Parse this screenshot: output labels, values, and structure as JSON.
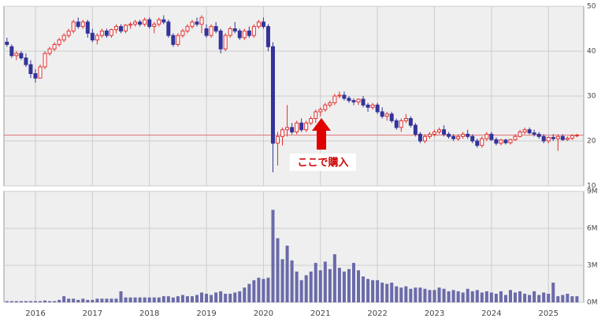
{
  "chart_data": {
    "type": "candlestick",
    "categories": [
      null,
      null,
      null,
      null,
      null,
      null,
      "2016",
      null,
      null,
      null,
      null,
      null,
      null,
      null,
      null,
      null,
      null,
      null,
      "2017",
      null,
      null,
      null,
      null,
      null,
      null,
      null,
      null,
      null,
      null,
      null,
      "2018",
      null,
      null,
      null,
      null,
      null,
      null,
      null,
      null,
      null,
      null,
      null,
      "2019",
      null,
      null,
      null,
      null,
      null,
      null,
      null,
      null,
      null,
      null,
      null,
      "2020",
      null,
      null,
      null,
      null,
      null,
      null,
      null,
      null,
      null,
      null,
      null,
      "2021",
      null,
      null,
      null,
      null,
      null,
      null,
      null,
      null,
      null,
      null,
      null,
      "2022",
      null,
      null,
      null,
      null,
      null,
      null,
      null,
      null,
      null,
      null,
      null,
      "2023",
      null,
      null,
      null,
      null,
      null,
      null,
      null,
      null,
      null,
      null,
      null,
      "2024",
      null,
      null,
      null,
      null,
      null,
      null,
      null,
      null,
      null,
      null,
      null,
      "2025",
      null,
      null,
      null,
      null,
      null,
      null
    ],
    "ohlc": [
      [
        42,
        43,
        41,
        41.5
      ],
      [
        41,
        41.5,
        38.5,
        39
      ],
      [
        39,
        40,
        38,
        39.5
      ],
      [
        39.5,
        40,
        38,
        38.5
      ],
      [
        38.5,
        39.5,
        36.5,
        37
      ],
      [
        37,
        38,
        34,
        35
      ],
      [
        35,
        36,
        33,
        34
      ],
      [
        34,
        37,
        34,
        36.5
      ],
      [
        36.5,
        40,
        36,
        39.5
      ],
      [
        39.5,
        41,
        39,
        40.5
      ],
      [
        40.5,
        42,
        40,
        41.5
      ],
      [
        41.5,
        43,
        41,
        42.5
      ],
      [
        42.5,
        44,
        42,
        43.5
      ],
      [
        43.5,
        45,
        43,
        44.5
      ],
      [
        44.5,
        47,
        44,
        46.5
      ],
      [
        46.5,
        47.5,
        45,
        45.5
      ],
      [
        45.5,
        47,
        45,
        46.5
      ],
      [
        46.5,
        47,
        43,
        44
      ],
      [
        44,
        45,
        42,
        42.5
      ],
      [
        42.5,
        44,
        41.5,
        43.5
      ],
      [
        43.5,
        45,
        43,
        44.5
      ],
      [
        44.5,
        45,
        43,
        43.5
      ],
      [
        43.5,
        45,
        43,
        44.8
      ],
      [
        44.8,
        46,
        44,
        45.5
      ],
      [
        45.5,
        46,
        44,
        44.5
      ],
      [
        44.5,
        46,
        44,
        45.8
      ],
      [
        45.8,
        46.5,
        45,
        46
      ],
      [
        46,
        47,
        45.5,
        46.5
      ],
      [
        46.5,
        47,
        45.5,
        46
      ],
      [
        46,
        47.5,
        45.5,
        47
      ],
      [
        47,
        47.5,
        45,
        45.5
      ],
      [
        45.5,
        46.5,
        44,
        46
      ],
      [
        46,
        47.5,
        45.5,
        47
      ],
      [
        47,
        48,
        46,
        46.5
      ],
      [
        46.5,
        47,
        43,
        43.5
      ],
      [
        43.5,
        44,
        41,
        41.5
      ],
      [
        41.5,
        44,
        41,
        43.5
      ],
      [
        43.5,
        45,
        43,
        44.5
      ],
      [
        44.5,
        46,
        44,
        45.5
      ],
      [
        45.5,
        47,
        45,
        46.5
      ],
      [
        46.5,
        47.5,
        45.5,
        46
      ],
      [
        46,
        48,
        44,
        47.5
      ],
      [
        45,
        46,
        43,
        43.5
      ],
      [
        43.5,
        46,
        43,
        45.5
      ],
      [
        45.5,
        46.5,
        44,
        44.5
      ],
      [
        44.5,
        45,
        39.5,
        40.5
      ],
      [
        40.5,
        44,
        40,
        43.5
      ],
      [
        43.5,
        45.5,
        43,
        45
      ],
      [
        45,
        46.5,
        44,
        44.5
      ],
      [
        44.5,
        45,
        42.5,
        43
      ],
      [
        43,
        45,
        42.5,
        44.5
      ],
      [
        44.5,
        45.5,
        43,
        43.5
      ],
      [
        43.5,
        46,
        43,
        45.5
      ],
      [
        45.5,
        47,
        45,
        46.5
      ],
      [
        46.5,
        47.5,
        45,
        45.5
      ],
      [
        45.5,
        46,
        40,
        41
      ],
      [
        41,
        42,
        13,
        19.5
      ],
      [
        19.5,
        22,
        14.5,
        21
      ],
      [
        21,
        23,
        19,
        22.5
      ],
      [
        22.5,
        28,
        21,
        23
      ],
      [
        23,
        24,
        21.5,
        22
      ],
      [
        22,
        24.5,
        21.5,
        24
      ],
      [
        24,
        25,
        22,
        22.5
      ],
      [
        22.5,
        24.5,
        22,
        24
      ],
      [
        24,
        25.5,
        23.5,
        25
      ],
      [
        25,
        27,
        24,
        26.5
      ],
      [
        26.5,
        27.5,
        25.5,
        27
      ],
      [
        27,
        28.5,
        26.5,
        28
      ],
      [
        28,
        29,
        27.5,
        28.5
      ],
      [
        28.5,
        30.5,
        28,
        30
      ],
      [
        30,
        31,
        29.5,
        30.2
      ],
      [
        30.2,
        31,
        29,
        29.5
      ],
      [
        29.5,
        30,
        28.5,
        29
      ],
      [
        29,
        29.5,
        28,
        28.7
      ],
      [
        28.7,
        29.5,
        28,
        29.3
      ],
      [
        29.3,
        30,
        27.5,
        28
      ],
      [
        28,
        28.5,
        26.5,
        27.5
      ],
      [
        27.5,
        28.5,
        27,
        28
      ],
      [
        28,
        28.5,
        26,
        26.5
      ],
      [
        26.5,
        27.5,
        25,
        25.5
      ],
      [
        25.5,
        26.5,
        24.5,
        26
      ],
      [
        26,
        26.5,
        24,
        24.5
      ],
      [
        24.5,
        25,
        22.5,
        23
      ],
      [
        23,
        25,
        22,
        24.5
      ],
      [
        24.5,
        26,
        24,
        25
      ],
      [
        25,
        25.5,
        23,
        23.5
      ],
      [
        23.5,
        24,
        21,
        21.5
      ],
      [
        21.5,
        22,
        19.5,
        20
      ],
      [
        20,
        21.5,
        19.5,
        21
      ],
      [
        21,
        22,
        20.5,
        21.5
      ],
      [
        21.5,
        22.5,
        21,
        22
      ],
      [
        22,
        23,
        21.5,
        22.5
      ],
      [
        22.5,
        23.5,
        21,
        21.5
      ],
      [
        21.5,
        22,
        20.5,
        21
      ],
      [
        21,
        21.5,
        20,
        20.5
      ],
      [
        20.5,
        21.5,
        20,
        21
      ],
      [
        21,
        22,
        20.5,
        21.5
      ],
      [
        21.5,
        22.5,
        20.5,
        21
      ],
      [
        21,
        21.5,
        19.5,
        20
      ],
      [
        20,
        20.5,
        18.5,
        19
      ],
      [
        19,
        21,
        18.5,
        20.5
      ],
      [
        20.5,
        22,
        20,
        21.5
      ],
      [
        21.5,
        22,
        20,
        20.3
      ],
      [
        20.3,
        20.8,
        19,
        19.5
      ],
      [
        19.5,
        20.5,
        19,
        20.2
      ],
      [
        20.2,
        20.5,
        19.2,
        19.6
      ],
      [
        19.6,
        20.5,
        19.2,
        20.3
      ],
      [
        20.3,
        21.5,
        20,
        21
      ],
      [
        21,
        22.5,
        20.8,
        22
      ],
      [
        22,
        23,
        21.5,
        22.5
      ],
      [
        22.5,
        23,
        21.5,
        21.8
      ],
      [
        21.8,
        22.5,
        21,
        21.5
      ],
      [
        21.5,
        22,
        20.5,
        21
      ],
      [
        21,
        21.5,
        19.5,
        20
      ],
      [
        20,
        21,
        19.5,
        20.8
      ],
      [
        20.8,
        21.5,
        20,
        20.5
      ],
      [
        20.5,
        21.5,
        17.8,
        21
      ],
      [
        21,
        21.5,
        20,
        20.3
      ],
      [
        20.3,
        21,
        20,
        20.6
      ],
      [
        20.6,
        21.5,
        20.2,
        21.2
      ],
      [
        21.2,
        21.6,
        20.8,
        21.3
      ]
    ],
    "volume": [
      0.1,
      0.1,
      0.1,
      0.1,
      0.1,
      0.1,
      0.1,
      0.1,
      0.15,
      0.1,
      0.1,
      0.2,
      0.5,
      0.3,
      0.3,
      0.2,
      0.3,
      0.2,
      0.2,
      0.3,
      0.3,
      0.3,
      0.3,
      0.3,
      0.9,
      0.4,
      0.4,
      0.4,
      0.4,
      0.4,
      0.4,
      0.4,
      0.4,
      0.5,
      0.5,
      0.4,
      0.5,
      0.6,
      0.5,
      0.5,
      0.6,
      0.8,
      0.7,
      0.6,
      0.8,
      0.9,
      0.7,
      0.7,
      0.8,
      0.9,
      1.2,
      1.5,
      1.8,
      2.0,
      1.9,
      2.0,
      7.5,
      5.2,
      3.5,
      4.6,
      3.4,
      2.5,
      1.8,
      2.2,
      2.5,
      3.2,
      2.6,
      3.3,
      2.7,
      3.9,
      2.8,
      2.5,
      2.7,
      3.2,
      2.6,
      2.1,
      1.9,
      1.8,
      1.8,
      1.6,
      1.5,
      1.6,
      1.3,
      1.2,
      1.3,
      1.1,
      1.2,
      1.2,
      1.1,
      1.0,
      1.0,
      1.2,
      1.1,
      0.9,
      1.0,
      0.9,
      0.8,
      1.1,
      0.9,
      1.0,
      0.8,
      0.9,
      0.8,
      0.7,
      0.9,
      0.6,
      1.0,
      0.8,
      0.9,
      0.7,
      0.6,
      0.9,
      0.6,
      0.8,
      0.7,
      1.6,
      0.5,
      0.6,
      0.7,
      0.5,
      0.5
    ],
    "up_color": "#e03030",
    "down_color": "#333399",
    "volume_color": "#6a6aaa",
    "ylim": [
      10,
      50
    ],
    "yticks": [
      10,
      20,
      30,
      40,
      50
    ],
    "y2lim": [
      0,
      9
    ],
    "y2ticks": [
      {
        "value": 0,
        "label": "0M"
      },
      {
        "value": 3,
        "label": "3M"
      },
      {
        "value": 6,
        "label": "6M"
      },
      {
        "value": 9,
        "label": "9M"
      }
    ],
    "hline": 21.3,
    "hline_color": "#e07070",
    "annotation": "ここで購入",
    "grid": true
  }
}
